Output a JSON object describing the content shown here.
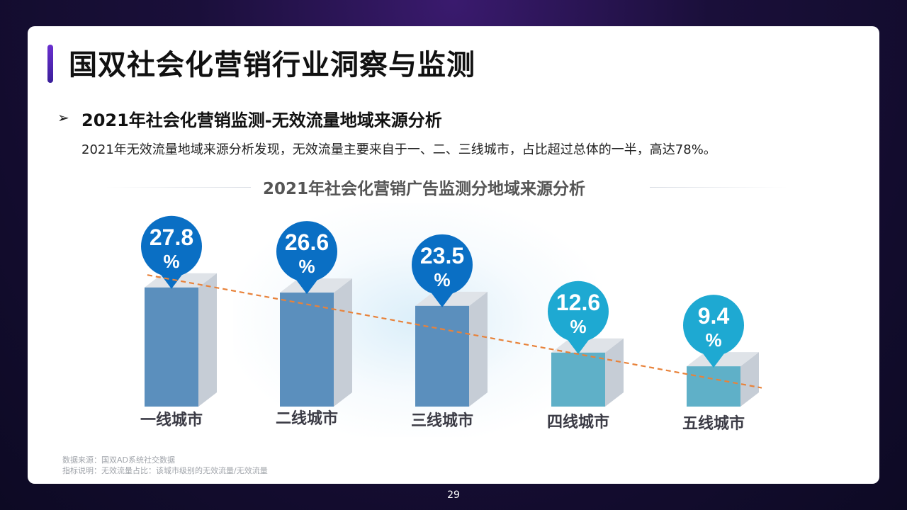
{
  "page": {
    "title": "国双社会化营销行业洞察与监测",
    "page_number": "29"
  },
  "section": {
    "bullet_icon": "arrow-right-icon",
    "subtitle": "2021年社会化营销监测-无效流量地域来源分析",
    "description": "2021年无效流量地域来源分析发现，无效流量主要来自于一、二、三线城市，占比超过总体的一半，高达78%。"
  },
  "footnotes": {
    "source": "数据来源：国双AD系统社交数据",
    "note": "指标说明：无效流量占比：该城市级别的无效流量/无效流量"
  },
  "colors": {
    "bar_dark": "#5b8fbd",
    "bar_light": "#5fb0c8",
    "pin_dark": "#0a6fc4",
    "pin_light": "#1ea9d2",
    "trend": "#e8823a"
  },
  "chart_data": {
    "type": "bar",
    "title": "2021年社会化营销广告监测分地域来源分析",
    "categories": [
      "一线城市",
      "二线城市",
      "三线城市",
      "四线城市",
      "五线城市"
    ],
    "series": [
      {
        "values": [
          27.8,
          26.6,
          23.5,
          12.6,
          9.4
        ]
      }
    ],
    "data_labels": [
      {
        "value": "27.8",
        "unit": "%"
      },
      {
        "value": "26.6",
        "unit": "%"
      },
      {
        "value": "23.5",
        "unit": "%"
      },
      {
        "value": "12.6",
        "unit": "%"
      },
      {
        "value": "9.4",
        "unit": "%"
      }
    ],
    "trendline": "linear",
    "unit": "%"
  }
}
